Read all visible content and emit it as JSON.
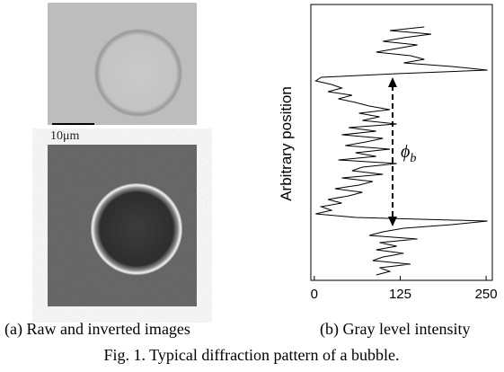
{
  "panel_a": {
    "scale_label": "10μm",
    "caption": "(a) Raw and inverted images"
  },
  "panel_b": {
    "caption": "(b) Gray level intensity"
  },
  "figure_caption": "Fig. 1. Typical diffraction pattern of a bubble.",
  "chart_data": {
    "type": "line",
    "orientation": "vertical",
    "ylabel": "Arbitrary position",
    "annotation": "ϕ",
    "annotation_subscript": "b",
    "color": "#000000",
    "values": [
      160,
      110,
      170,
      130,
      100,
      150,
      120,
      90,
      140,
      160,
      130,
      200,
      252,
      120,
      10,
      2,
      25,
      40,
      20,
      55,
      35,
      60,
      80,
      110,
      65,
      95,
      70,
      120,
      50,
      90,
      40,
      100,
      75,
      45,
      110,
      60,
      90,
      35,
      120,
      70,
      55,
      100,
      40,
      85,
      65,
      30,
      70,
      50,
      20,
      40,
      10,
      25,
      2,
      60,
      252,
      200,
      130,
      100,
      80,
      150,
      95,
      120,
      90,
      130,
      100,
      85,
      140,
      95,
      110,
      90
    ],
    "xlim": [
      -5,
      259
    ],
    "xticks": [
      0,
      125,
      250
    ]
  }
}
